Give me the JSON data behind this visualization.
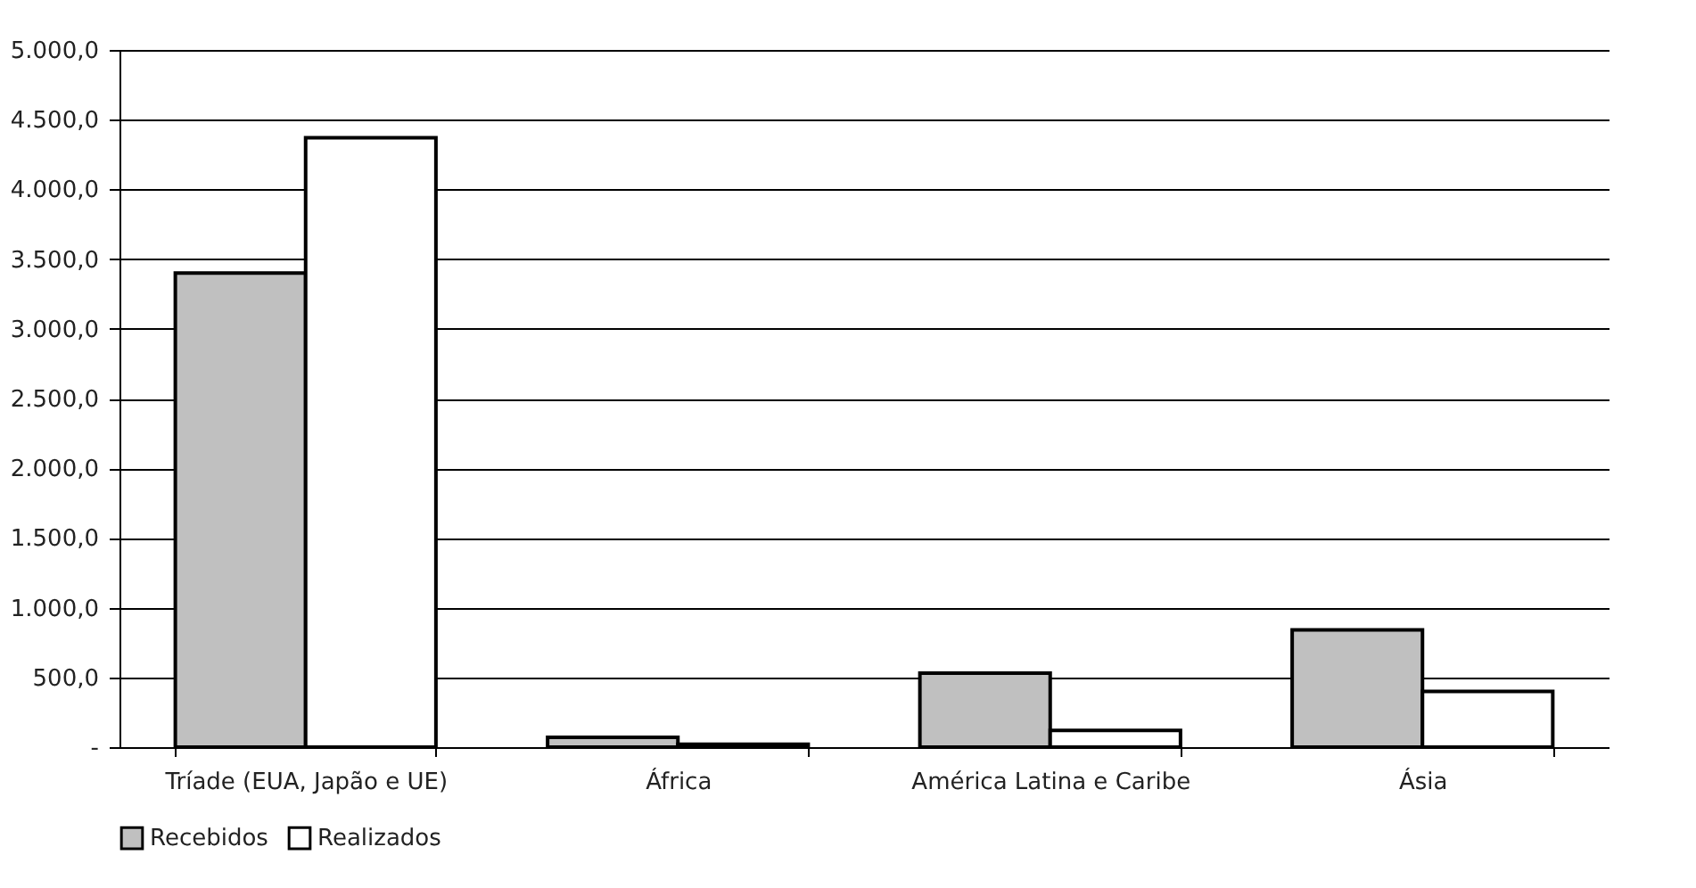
{
  "chart_data": {
    "type": "bar",
    "categories": [
      "Tríade (EUA, Japão e UE)",
      "África",
      "América Latina e Caribe",
      "Ásia"
    ],
    "series": [
      {
        "name": "Recebidos",
        "color": "#c0c0c0",
        "values": [
          3400,
          70,
          530,
          840
        ]
      },
      {
        "name": "Realizados",
        "color": "#ffffff",
        "values": [
          4370,
          20,
          120,
          400
        ]
      }
    ],
    "ylim": [
      0,
      5000
    ],
    "yticks": [
      {
        "value": 0,
        "label": "-"
      },
      {
        "value": 500,
        "label": "500,0"
      },
      {
        "value": 1000,
        "label": "1.000,0"
      },
      {
        "value": 1500,
        "label": "1.500,0"
      },
      {
        "value": 2000,
        "label": "2.000,0"
      },
      {
        "value": 2500,
        "label": "2.500,0"
      },
      {
        "value": 3000,
        "label": "3.000,0"
      },
      {
        "value": 3500,
        "label": "3.500,0"
      },
      {
        "value": 4000,
        "label": "4.000,0"
      },
      {
        "value": 4500,
        "label": "4.500,0"
      },
      {
        "value": 5000,
        "label": "5.000,0"
      }
    ],
    "grid": "y",
    "legend": "bottom"
  }
}
